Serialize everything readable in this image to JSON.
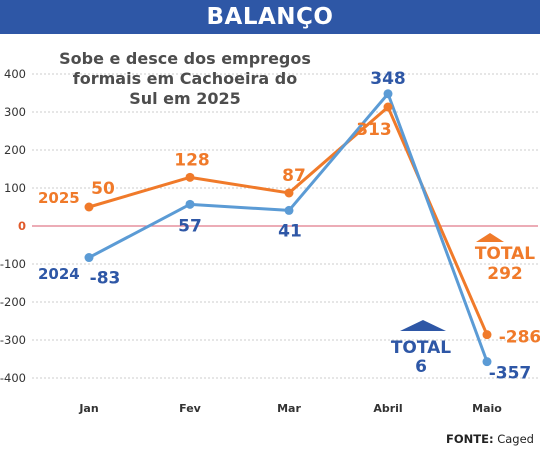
{
  "banner": {
    "title": "BALANÇO"
  },
  "source": {
    "label": "FONTE:",
    "text": "Caged"
  },
  "colors": {
    "series_2025": "#f07a2a",
    "series_2024": "#5b9bd5",
    "label_2024": "#2e57a6",
    "banner": "#2e57a6",
    "zero_line": "#e07a8a"
  },
  "chart_data": {
    "type": "line",
    "title": "Sobe e desce dos empregos formais em Cachoeira do Sul em 2025",
    "title_lines": [
      "Sobe e desce dos empregos",
      "formais em Cachoeira do",
      "Sul em 2025"
    ],
    "categories": [
      "Jan",
      "Fev",
      "Mar",
      "Abril",
      "Maio"
    ],
    "yticks": [
      "400",
      "300",
      "200",
      "100",
      "0",
      "-100",
      "-200",
      "-300",
      "-400"
    ],
    "ylim": [
      -400,
      400
    ],
    "grid": "horizontal dashed",
    "series": [
      {
        "name": "2025",
        "values": [
          50,
          128,
          87,
          313,
          -286
        ],
        "labels": [
          "50",
          "128",
          "87",
          "313",
          "-286"
        ]
      },
      {
        "name": "2024",
        "values": [
          -83,
          57,
          41,
          348,
          -357
        ],
        "labels": [
          "-83",
          "57",
          "41",
          "348",
          "-357"
        ]
      }
    ],
    "totals": [
      {
        "series": "2025",
        "label": "TOTAL",
        "value": "292"
      },
      {
        "series": "2024",
        "label": "TOTAL",
        "value": "6"
      }
    ]
  }
}
